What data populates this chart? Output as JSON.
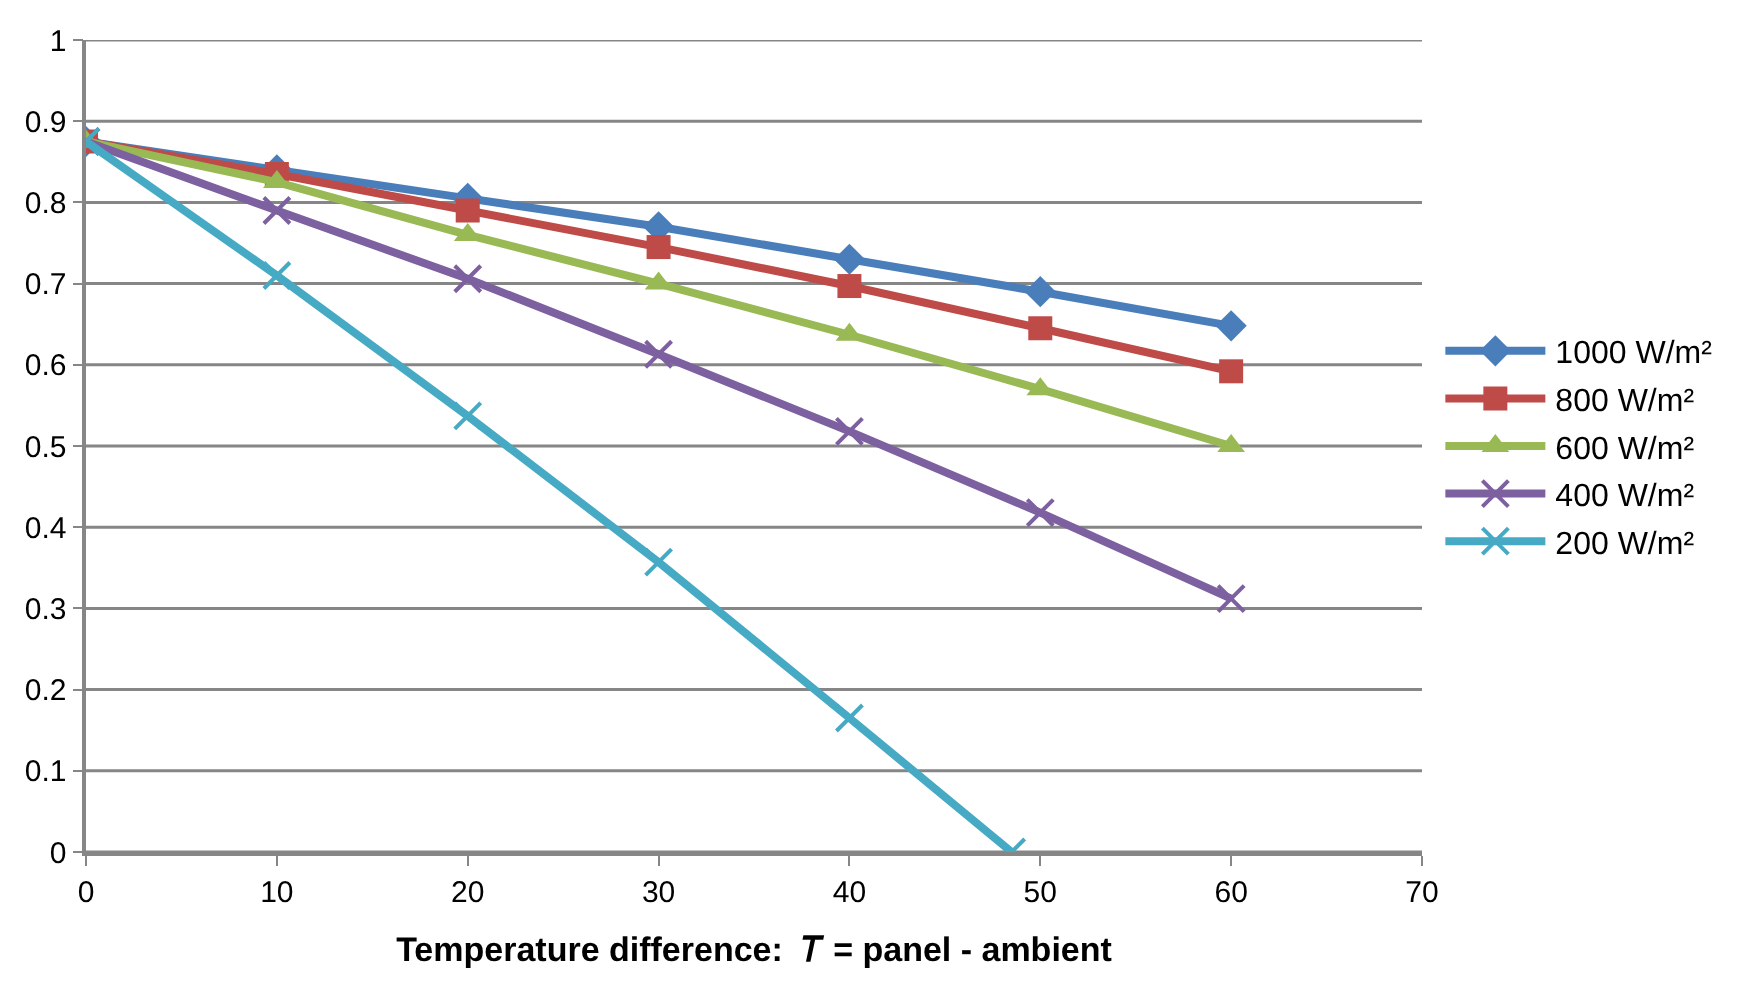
{
  "chart_data": {
    "type": "line",
    "xlabel": "Temperature difference:  𝑇 = panel - ambient",
    "x": [
      0,
      10,
      20,
      30,
      40,
      50,
      60
    ],
    "series": [
      {
        "name": "1000 W/m²",
        "color": "#4a7ebb",
        "marker": "diamond",
        "values": [
          0.875,
          0.84,
          0.805,
          0.77,
          0.73,
          0.69,
          0.648
        ]
      },
      {
        "name": "800 W/m²",
        "color": "#be4b48",
        "marker": "square",
        "values": [
          0.875,
          0.835,
          0.79,
          0.745,
          0.697,
          0.645,
          0.592
        ]
      },
      {
        "name": "600 W/m²",
        "color": "#98b954",
        "marker": "triangle",
        "values": [
          0.875,
          0.825,
          0.76,
          0.7,
          0.637,
          0.57,
          0.5
        ]
      },
      {
        "name": "400 W/m²",
        "color": "#7d60a0",
        "marker": "cross",
        "values": [
          0.875,
          0.79,
          0.706,
          0.613,
          0.518,
          0.418,
          0.312
        ]
      },
      {
        "name": "200 W/m²",
        "color": "#46aac5",
        "marker": "cross",
        "x": [
          0,
          10,
          20,
          30,
          40,
          48.5
        ],
        "values": [
          0.875,
          0.71,
          0.537,
          0.357,
          0.165,
          0
        ]
      }
    ],
    "xlim": [
      0,
      70
    ],
    "xticks": [
      0,
      10,
      20,
      30,
      40,
      50,
      60,
      70
    ],
    "ylim": [
      0,
      1
    ],
    "yticks": [
      0,
      0.1,
      0.2,
      0.3,
      0.4,
      0.5,
      0.6,
      0.7,
      0.8,
      0.9,
      1
    ],
    "grid": "y",
    "legend": "right",
    "line_style": "solid"
  }
}
